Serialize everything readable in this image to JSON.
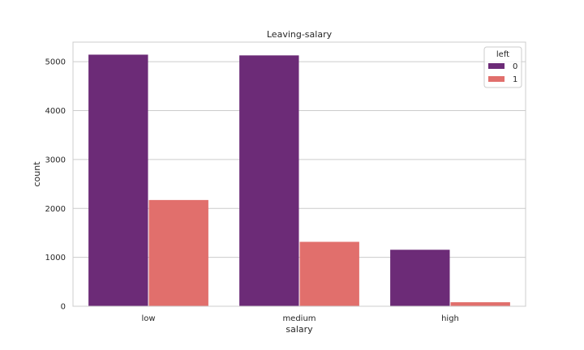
{
  "chart_data": {
    "type": "bar",
    "title": "Leaving-salary",
    "xlabel": "salary",
    "ylabel": "count",
    "categories": [
      "low",
      "medium",
      "high"
    ],
    "series": [
      {
        "name": "0",
        "values": [
          5144,
          5129,
          1155
        ],
        "color": "#6c2b77"
      },
      {
        "name": "1",
        "values": [
          2172,
          1317,
          82
        ],
        "color": "#e16f6c"
      }
    ],
    "legend_title": "left",
    "legend_position": "top-right",
    "ylim": [
      0,
      5400
    ],
    "yticks": [
      0,
      1000,
      2000,
      3000,
      4000,
      5000
    ],
    "grid": "horizontal"
  }
}
